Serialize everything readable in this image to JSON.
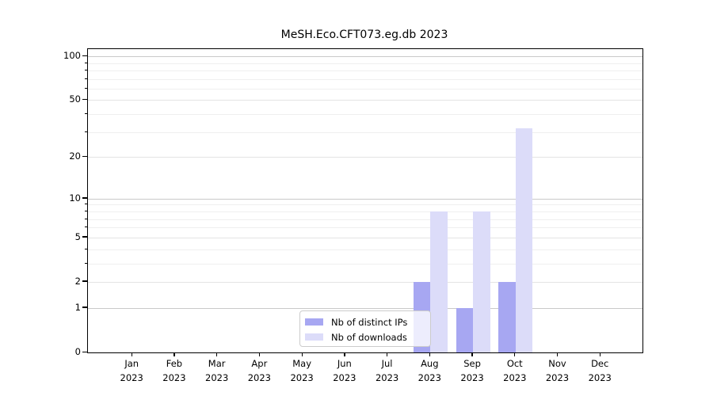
{
  "title": "MeSH.Eco.CFT073.eg.db 2023",
  "chart_data": {
    "type": "bar",
    "title": "MeSH.Eco.CFT073.eg.db 2023",
    "categories": [
      "Jan",
      "Feb",
      "Mar",
      "Apr",
      "May",
      "Jun",
      "Jul",
      "Aug",
      "Sep",
      "Oct",
      "Nov",
      "Dec"
    ],
    "year": "2023",
    "series": [
      {
        "name": "Nb of distinct IPs",
        "color": "#a7a7f2",
        "values": [
          0,
          0,
          0,
          0,
          0,
          0,
          0,
          2,
          1,
          2,
          0,
          0
        ]
      },
      {
        "name": "Nb of downloads",
        "color": "#dcdcf9",
        "values": [
          0,
          0,
          0,
          0,
          0,
          0,
          0,
          8,
          8,
          32,
          0,
          0
        ]
      }
    ],
    "xlabel": "",
    "ylabel": "",
    "yscale": "log10(1+x)",
    "ylim": [
      0,
      111
    ],
    "yticks_labeled": [
      0,
      1,
      2,
      5,
      10,
      20,
      50,
      100
    ],
    "yticks_minor": [
      3,
      4,
      6,
      7,
      8,
      9,
      30,
      40,
      60,
      70,
      80,
      90
    ],
    "ygrid_major": [
      1,
      10,
      100
    ],
    "grid": true,
    "legend_position": "lower center"
  },
  "legend": {
    "items": [
      "Nb of distinct IPs",
      "Nb of downloads"
    ]
  },
  "colors": {
    "background": "#ffffff",
    "spine": "#000000",
    "grid_major": "#c9c9c9",
    "grid_minor": "#efefef",
    "bar_ips": "#a7a7f2",
    "bar_downloads": "#dcdcf9",
    "legend_border": "#cccccc"
  }
}
